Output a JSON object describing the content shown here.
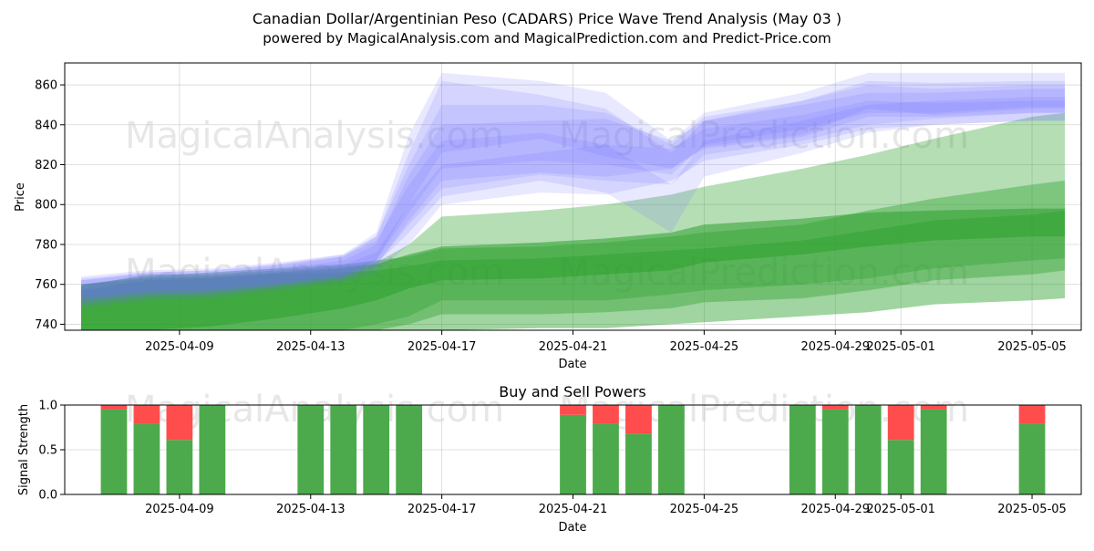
{
  "header": {
    "title": "Canadian Dollar/Argentinian Peso (CADARS) Price Wave Trend Analysis (May 03 )",
    "subtitle": "powered by MagicalAnalysis.com and MagicalPrediction.com and Predict-Price.com"
  },
  "watermarks": [
    "MagicalAnalysis.com",
    "MagicalPrediction.com"
  ],
  "colors": {
    "green_band": "#2ca02c",
    "blue_band": "#6f6fff",
    "buy": "#4caa4c",
    "sell": "#ff4d4d"
  },
  "chart_data": [
    {
      "type": "area",
      "title": "",
      "xlabel": "Date",
      "ylabel": "Price",
      "x_axis_type": "date",
      "xlim": [
        "2025-04-05T12:00",
        "2025-05-06T12:00"
      ],
      "ylim": [
        737,
        871
      ],
      "x_ticks": [
        "2025-04-09",
        "2025-04-13",
        "2025-04-17",
        "2025-04-21",
        "2025-04-25",
        "2025-04-29",
        "2025-05-01",
        "2025-05-05"
      ],
      "y_ticks": [
        740,
        760,
        780,
        800,
        820,
        840,
        860
      ],
      "grid": true,
      "x_dates": [
        "2025-04-06",
        "2025-04-08",
        "2025-04-10",
        "2025-04-12",
        "2025-04-14",
        "2025-04-15",
        "2025-04-16",
        "2025-04-17",
        "2025-04-20",
        "2025-04-22",
        "2025-04-24",
        "2025-04-25",
        "2025-04-28",
        "2025-04-30",
        "2025-05-02",
        "2025-05-05",
        "2025-05-06"
      ],
      "green_bands": [
        {
          "lower": [
            737,
            737,
            737,
            737,
            737,
            740,
            744,
            752,
            752,
            752,
            755,
            757,
            760,
            763,
            768,
            772,
            773
          ],
          "upper": [
            759,
            765,
            765,
            767,
            769,
            771,
            780,
            794,
            797,
            800,
            805,
            809,
            818,
            825,
            833,
            844,
            846
          ]
        },
        {
          "lower": [
            737,
            737,
            737,
            737,
            737,
            737,
            740,
            745,
            745,
            746,
            748,
            751,
            753,
            757,
            762,
            765,
            767
          ],
          "upper": [
            760,
            764,
            766,
            768,
            770,
            772,
            774,
            778,
            779,
            781,
            784,
            786,
            790,
            797,
            803,
            810,
            812
          ]
        },
        {
          "lower": [
            737,
            737,
            737,
            737,
            737,
            737,
            737,
            737,
            738,
            738,
            740,
            741,
            744,
            746,
            750,
            752,
            753
          ],
          "upper": [
            757,
            762,
            763,
            765,
            766,
            767,
            769,
            772,
            773,
            775,
            777,
            778,
            782,
            787,
            792,
            795,
            797
          ]
        },
        {
          "lower": [
            737,
            737,
            739,
            743,
            748,
            752,
            758,
            762,
            763,
            765,
            767,
            771,
            775,
            779,
            782,
            784,
            784
          ],
          "upper": [
            760,
            763,
            764,
            766,
            768,
            770,
            775,
            779,
            781,
            783,
            786,
            790,
            793,
            796,
            797,
            798,
            798
          ]
        }
      ],
      "blue_bands": [
        {
          "lower": [
            752,
            755,
            756,
            760,
            764,
            772,
            800,
            826,
            833,
            824,
            818,
            829,
            835,
            848,
            845,
            848,
            848
          ],
          "upper": [
            762,
            765,
            766,
            769,
            774,
            784,
            826,
            862,
            855,
            848,
            826,
            842,
            852,
            862,
            861,
            862,
            862
          ]
        },
        {
          "lower": [
            750,
            754,
            755,
            759,
            763,
            770,
            790,
            808,
            815,
            812,
            810,
            825,
            832,
            840,
            843,
            846,
            846
          ],
          "upper": [
            760,
            764,
            765,
            768,
            772,
            780,
            815,
            840,
            842,
            843,
            832,
            842,
            850,
            856,
            856,
            858,
            858
          ]
        },
        {
          "lower": [
            754,
            757,
            758,
            761,
            765,
            772,
            796,
            818,
            822,
            820,
            815,
            830,
            838,
            846,
            846,
            849,
            849
          ],
          "upper": [
            764,
            767,
            768,
            771,
            775,
            784,
            820,
            850,
            850,
            846,
            830,
            844,
            852,
            860,
            858,
            860,
            860
          ]
        },
        {
          "lower": [
            748,
            752,
            753,
            757,
            761,
            766,
            780,
            800,
            806,
            805,
            812,
            822,
            830,
            838,
            840,
            842,
            842
          ],
          "upper": [
            758,
            762,
            763,
            766,
            770,
            776,
            800,
            820,
            826,
            830,
            828,
            838,
            845,
            852,
            851,
            852,
            852
          ]
        },
        {
          "lower": [
            753,
            756,
            757,
            760,
            764,
            770,
            786,
            804,
            812,
            806,
            786,
            814,
            826,
            836,
            840,
            842,
            842
          ],
          "upper": [
            763,
            766,
            767,
            770,
            774,
            782,
            810,
            832,
            836,
            830,
            810,
            832,
            842,
            850,
            852,
            854,
            854
          ]
        },
        {
          "lower": [
            751,
            755,
            756,
            759,
            763,
            769,
            792,
            812,
            816,
            814,
            818,
            828,
            834,
            844,
            844,
            846,
            846
          ],
          "upper": [
            762,
            766,
            767,
            770,
            775,
            786,
            835,
            866,
            862,
            856,
            832,
            846,
            856,
            866,
            866,
            866,
            866
          ]
        }
      ]
    },
    {
      "type": "bar",
      "title": "Buy and Sell Powers",
      "xlabel": "Date",
      "ylabel": "Signal Strength",
      "x_axis_type": "date",
      "xlim": [
        "2025-04-05T12:00",
        "2025-05-06T12:00"
      ],
      "ylim": [
        0,
        1
      ],
      "x_ticks": [
        "2025-04-09",
        "2025-04-13",
        "2025-04-17",
        "2025-04-21",
        "2025-04-25",
        "2025-04-29",
        "2025-05-01",
        "2025-05-05"
      ],
      "y_ticks": [
        "0.0",
        "0.5",
        "1.0"
      ],
      "grid": true,
      "categories": [
        "2025-04-07",
        "2025-04-08",
        "2025-04-09",
        "2025-04-10",
        "2025-04-13",
        "2025-04-14",
        "2025-04-15",
        "2025-04-16",
        "2025-04-21",
        "2025-04-22",
        "2025-04-23",
        "2025-04-24",
        "2025-04-28",
        "2025-04-29",
        "2025-04-30",
        "2025-05-01",
        "2025-05-02",
        "2025-05-05"
      ],
      "buy": [
        0.95,
        0.79,
        0.61,
        1.0,
        1.0,
        1.0,
        1.0,
        1.0,
        0.89,
        0.79,
        0.68,
        1.0,
        1.0,
        0.95,
        1.0,
        0.61,
        0.95,
        0.79
      ],
      "sell": [
        0.05,
        0.21,
        0.39,
        0.0,
        0.0,
        0.0,
        0.0,
        0.0,
        0.11,
        0.21,
        0.32,
        0.0,
        0.0,
        0.05,
        0.0,
        0.39,
        0.05,
        0.21
      ]
    }
  ]
}
